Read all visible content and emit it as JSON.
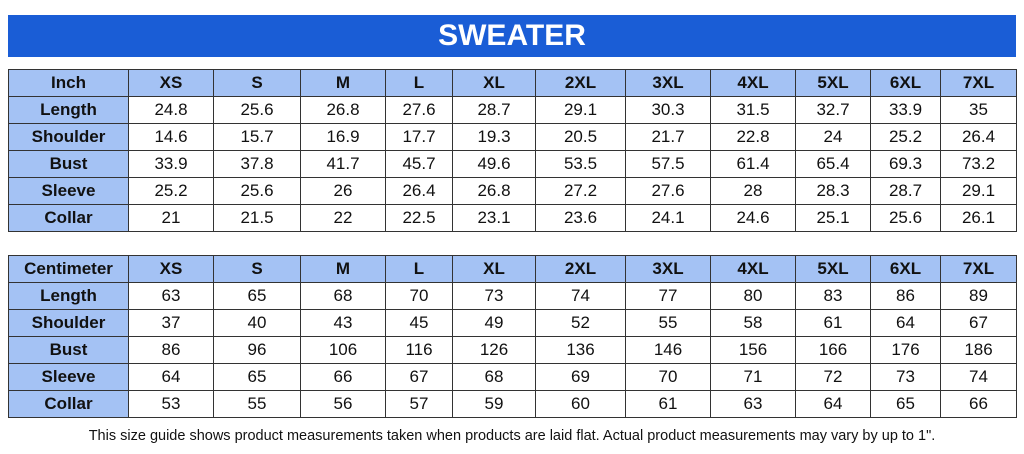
{
  "title": "SWEATER",
  "tables": [
    {
      "header": [
        "Inch",
        "XS",
        "S",
        "M",
        "L",
        "XL",
        "2XL",
        "3XL",
        "4XL",
        "5XL",
        "6XL",
        "7XL"
      ],
      "rows": [
        [
          "Length",
          24.8,
          25.6,
          26.8,
          27.6,
          28.7,
          29.1,
          30.3,
          31.5,
          32.7,
          33.9,
          35
        ],
        [
          "Shoulder",
          14.6,
          15.7,
          16.9,
          17.7,
          19.3,
          20.5,
          21.7,
          22.8,
          24,
          25.2,
          26.4
        ],
        [
          "Bust",
          33.9,
          37.8,
          41.7,
          45.7,
          49.6,
          53.5,
          57.5,
          61.4,
          65.4,
          69.3,
          73.2
        ],
        [
          "Sleeve",
          25.2,
          25.6,
          26,
          26.4,
          26.8,
          27.2,
          27.6,
          28,
          28.3,
          28.7,
          29.1
        ],
        [
          "Collar",
          21,
          21.5,
          22,
          22.5,
          23.1,
          23.6,
          24.1,
          24.6,
          25.1,
          25.6,
          26.1
        ]
      ]
    },
    {
      "header": [
        "Centimeter",
        "XS",
        "S",
        "M",
        "L",
        "XL",
        "2XL",
        "3XL",
        "4XL",
        "5XL",
        "6XL",
        "7XL"
      ],
      "rows": [
        [
          "Length",
          63,
          65,
          68,
          70,
          73,
          74,
          77,
          80,
          83,
          86,
          89
        ],
        [
          "Shoulder",
          37,
          40,
          43,
          45,
          49,
          52,
          55,
          58,
          61,
          64,
          67
        ],
        [
          "Bust",
          86,
          96,
          106,
          116,
          126,
          136,
          146,
          156,
          166,
          176,
          186
        ],
        [
          "Sleeve",
          64,
          65,
          66,
          67,
          68,
          69,
          70,
          71,
          72,
          73,
          74
        ],
        [
          "Collar",
          53,
          55,
          56,
          57,
          59,
          60,
          61,
          63,
          64,
          65,
          66
        ]
      ]
    }
  ],
  "note": "This size guide shows product measurements taken when products are laid flat. Actual product measurements may vary by up to 1\"."
}
